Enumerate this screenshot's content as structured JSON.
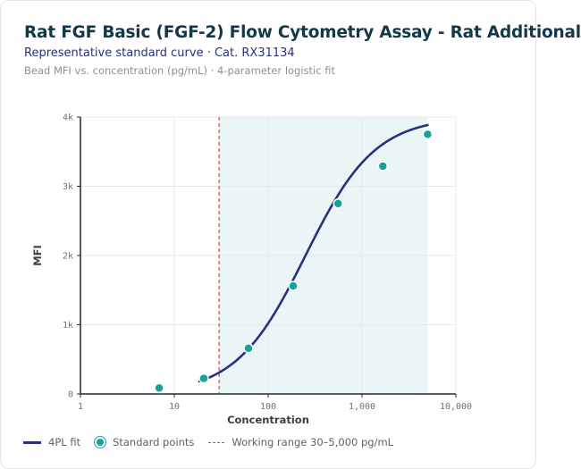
{
  "header": {
    "title": "Rat FGF Basic (FGF-2) Flow Cytometry Assay - Rat Additional",
    "subtitle": "Representative standard curve · Cat. RX31134",
    "caption": "Bead MFI vs. concentration (pg/mL) · 4-parameter logistic fit"
  },
  "legend": {
    "fit_label": "4PL fit",
    "points_label": "Standard points",
    "range_label": "Working range 30–5,000 pg/mL"
  },
  "colors": {
    "fit": "#2a2f7f",
    "points": "#13a39a",
    "range_fill": "#eaf6f6",
    "range_line": "#d9464a",
    "grid": "#e6e8eb",
    "axis": "#1f2937"
  },
  "chart_data": {
    "type": "scatter",
    "xscale": "log",
    "xlim": [
      1,
      10000
    ],
    "ylim": [
      0,
      4000
    ],
    "xlabel": "Concentration",
    "ylabel": "MFI",
    "x_ticks": [
      1,
      10,
      100,
      1000,
      10000
    ],
    "x_tick_labels": [
      "1",
      "10",
      "100",
      "1,000",
      "10,000"
    ],
    "y_ticks": [
      0,
      1000,
      2000,
      3000,
      4000
    ],
    "y_tick_labels": [
      "0",
      "1k",
      "2k",
      "3k",
      "4k"
    ],
    "grid": true,
    "legend_position": "bottom-left",
    "working_range": [
      30,
      5000
    ],
    "standard_points": {
      "name": "Standard points",
      "x": [
        6.9,
        20.6,
        61.7,
        185,
        556,
        1667,
        5000
      ],
      "y": [
        85,
        225,
        660,
        1560,
        2750,
        3290,
        3750
      ]
    },
    "fit": {
      "name": "4PL fit",
      "model": "4PL",
      "bottom": 0,
      "top": 4000,
      "ec50": 250,
      "hill": 1.17,
      "x_range": [
        18.5,
        5000
      ]
    }
  }
}
